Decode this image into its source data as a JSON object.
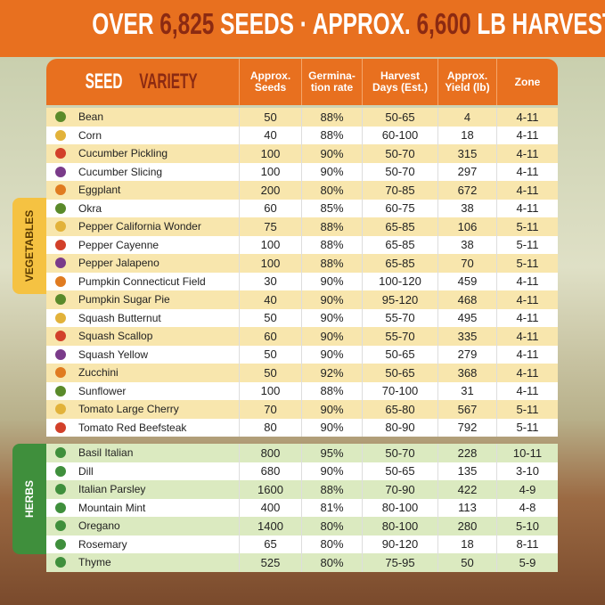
{
  "header": {
    "title_parts": [
      "OVER",
      "6,825",
      "SEEDS · APPROX.",
      "6,600",
      "LB HARVEST"
    ]
  },
  "table": {
    "variety_header": [
      "SEED",
      "VARIETY"
    ],
    "columns": [
      "Approx. Seeds",
      "Germina-tion rate",
      "Harvest Days (Est.)",
      "Approx. Yield (lb)",
      "Zone"
    ],
    "groups": [
      {
        "label": "VEGETABLES",
        "rows": [
          [
            "Bean",
            "50",
            "88%",
            "50-65",
            "4",
            "4-11"
          ],
          [
            "Corn",
            "40",
            "88%",
            "60-100",
            "18",
            "4-11"
          ],
          [
            "Cucumber Pickling",
            "100",
            "90%",
            "50-70",
            "315",
            "4-11"
          ],
          [
            "Cucumber Slicing",
            "100",
            "90%",
            "50-70",
            "297",
            "4-11"
          ],
          [
            "Eggplant",
            "200",
            "80%",
            "70-85",
            "672",
            "4-11"
          ],
          [
            "Okra",
            "60",
            "85%",
            "60-75",
            "38",
            "4-11"
          ],
          [
            "Pepper California Wonder",
            "75",
            "88%",
            "65-85",
            "106",
            "5-11"
          ],
          [
            "Pepper Cayenne",
            "100",
            "88%",
            "65-85",
            "38",
            "5-11"
          ],
          [
            "Pepper Jalapeno",
            "100",
            "88%",
            "65-85",
            "70",
            "5-11"
          ],
          [
            "Pumpkin Connecticut Field",
            "30",
            "90%",
            "100-120",
            "459",
            "4-11"
          ],
          [
            "Pumpkin Sugar Pie",
            "40",
            "90%",
            "95-120",
            "468",
            "4-11"
          ],
          [
            "Squash Butternut",
            "50",
            "90%",
            "55-70",
            "495",
            "4-11"
          ],
          [
            "Squash Scallop",
            "60",
            "90%",
            "55-70",
            "335",
            "4-11"
          ],
          [
            "Squash Yellow",
            "50",
            "90%",
            "50-65",
            "279",
            "4-11"
          ],
          [
            "Zucchini",
            "50",
            "92%",
            "50-65",
            "368",
            "4-11"
          ],
          [
            "Sunflower",
            "100",
            "88%",
            "70-100",
            "31",
            "4-11"
          ],
          [
            "Tomato Large Cherry",
            "70",
            "90%",
            "65-80",
            "567",
            "5-11"
          ],
          [
            "Tomato Red Beefsteak",
            "80",
            "90%",
            "80-90",
            "792",
            "5-11"
          ]
        ]
      },
      {
        "label": "HERBS",
        "rows": [
          [
            "Basil Italian",
            "800",
            "95%",
            "50-70",
            "228",
            "10-11"
          ],
          [
            "Dill",
            "680",
            "90%",
            "50-65",
            "135",
            "3-10"
          ],
          [
            "Italian Parsley",
            "1600",
            "88%",
            "70-90",
            "422",
            "4-9"
          ],
          [
            "Mountain Mint",
            "400",
            "81%",
            "80-100",
            "113",
            "4-8"
          ],
          [
            "Oregano",
            "1400",
            "80%",
            "80-100",
            "280",
            "5-10"
          ],
          [
            "Rosemary",
            "65",
            "80%",
            "90-120",
            "18",
            "8-11"
          ],
          [
            "Thyme",
            "525",
            "80%",
            "75-95",
            "50",
            "5-9"
          ]
        ]
      }
    ]
  }
}
